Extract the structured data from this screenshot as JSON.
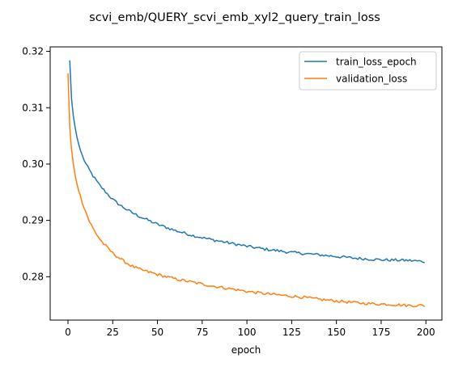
{
  "chart_data": {
    "type": "line",
    "title": "scvi_emb/QUERY_scvi_emb_xyl2_query_train_loss",
    "xlabel": "epoch",
    "ylabel": "",
    "xlim": [
      -9.95,
      208.95
    ],
    "ylim": [
      0.2723,
      0.3208
    ],
    "xticks": [
      0,
      25,
      50,
      75,
      100,
      125,
      150,
      175,
      200
    ],
    "yticks": [
      0.28,
      0.29,
      0.3,
      0.31,
      0.32
    ],
    "ytick_labels": [
      "0.28",
      "0.29",
      "0.30",
      "0.31",
      "0.32"
    ],
    "grid": false,
    "legend": "top-right",
    "series": [
      {
        "name": "train_loss_epoch",
        "color": "#1f77b4",
        "x_start": 1,
        "anchors": [
          [
            1,
            0.3183
          ],
          [
            2,
            0.3115
          ],
          [
            3,
            0.3085
          ],
          [
            4,
            0.3065
          ],
          [
            5,
            0.3048
          ],
          [
            6,
            0.3035
          ],
          [
            7,
            0.3024
          ],
          [
            8,
            0.3015
          ],
          [
            10,
            0.3
          ],
          [
            12,
            0.2989
          ],
          [
            14,
            0.2979
          ],
          [
            17,
            0.2965
          ],
          [
            20,
            0.2954
          ],
          [
            25,
            0.2937
          ],
          [
            30,
            0.2925
          ],
          [
            35,
            0.2915
          ],
          [
            40,
            0.2907
          ],
          [
            45,
            0.29
          ],
          [
            50,
            0.2893
          ],
          [
            60,
            0.2882
          ],
          [
            70,
            0.2873
          ],
          [
            80,
            0.2866
          ],
          [
            90,
            0.286
          ],
          [
            100,
            0.2854
          ],
          [
            110,
            0.2849
          ],
          [
            125,
            0.2843
          ],
          [
            140,
            0.2839
          ],
          [
            150,
            0.2836
          ],
          [
            160,
            0.2833
          ],
          [
            175,
            0.283
          ],
          [
            190,
            0.2829
          ],
          [
            199,
            0.2827
          ]
        ]
      },
      {
        "name": "validation_loss",
        "color": "#ff7f0e",
        "x_start": 0,
        "anchors": [
          [
            0,
            0.316
          ],
          [
            1,
            0.3065
          ],
          [
            2,
            0.3025
          ],
          [
            3,
            0.3
          ],
          [
            4,
            0.298
          ],
          [
            5,
            0.2965
          ],
          [
            6,
            0.2952
          ],
          [
            7,
            0.2942
          ],
          [
            8,
            0.2932
          ],
          [
            10,
            0.2915
          ],
          [
            12,
            0.2898
          ],
          [
            15,
            0.288
          ],
          [
            18,
            0.2866
          ],
          [
            20,
            0.2858
          ],
          [
            25,
            0.2842
          ],
          [
            30,
            0.283
          ],
          [
            35,
            0.282
          ],
          [
            40,
            0.2813
          ],
          [
            50,
            0.2804
          ],
          [
            60,
            0.2796
          ],
          [
            70,
            0.279
          ],
          [
            80,
            0.2784
          ],
          [
            90,
            0.2779
          ],
          [
            100,
            0.2774
          ],
          [
            110,
            0.277
          ],
          [
            120,
            0.2767
          ],
          [
            130,
            0.2764
          ],
          [
            140,
            0.276
          ],
          [
            150,
            0.2757
          ],
          [
            160,
            0.2754
          ],
          [
            170,
            0.2752
          ],
          [
            180,
            0.2751
          ],
          [
            190,
            0.2749
          ],
          [
            199,
            0.2749
          ]
        ]
      }
    ]
  }
}
